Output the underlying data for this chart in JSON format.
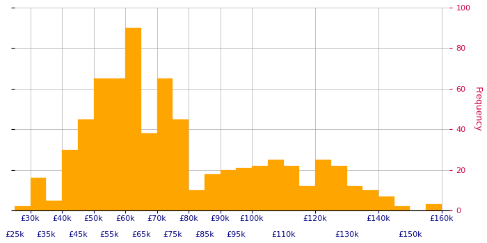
{
  "bin_edges": [
    25000,
    30000,
    35000,
    40000,
    45000,
    50000,
    55000,
    60000,
    65000,
    70000,
    75000,
    80000,
    85000,
    90000,
    95000,
    100000,
    105000,
    110000,
    115000,
    120000,
    125000,
    130000,
    135000,
    140000,
    145000,
    150000,
    155000,
    160000
  ],
  "frequencies": [
    2,
    16,
    5,
    30,
    45,
    65,
    65,
    90,
    38,
    65,
    45,
    10,
    18,
    20,
    21,
    22,
    25,
    22,
    12,
    25,
    22,
    12,
    10,
    7,
    2,
    0,
    3
  ],
  "bar_color": "#FFA500",
  "bar_edgecolor": "#FFA500",
  "ylabel": "Frequency",
  "ylim": [
    0,
    100
  ],
  "xlim": [
    25000,
    162500
  ],
  "yticks": [
    0,
    20,
    40,
    60,
    80,
    100
  ],
  "xticks_major": [
    30000,
    40000,
    50000,
    60000,
    70000,
    80000,
    90000,
    100000,
    120000,
    140000,
    160000
  ],
  "xticks_minor": [
    25000,
    35000,
    45000,
    55000,
    65000,
    75000,
    85000,
    95000,
    110000,
    130000,
    150000
  ],
  "xtick_major_labels": [
    "£30k",
    "£40k",
    "£50k",
    "£60k",
    "£70k",
    "£80k",
    "£90k",
    "£100k",
    "£120k",
    "£140k",
    "£160k"
  ],
  "xtick_minor_labels": [
    "£25k",
    "£35k",
    "£45k",
    "£55k",
    "£65k",
    "£75k",
    "£85k",
    "£95k",
    "£110k",
    "£130k",
    "£150k"
  ],
  "grid_color": "#aaaaaa",
  "background_color": "#ffffff",
  "ylabel_color": "#cc0044",
  "ytick_color": "#cc0044",
  "xtick_color": "#000080",
  "ylabel_fontsize": 9,
  "tick_fontsize": 8
}
